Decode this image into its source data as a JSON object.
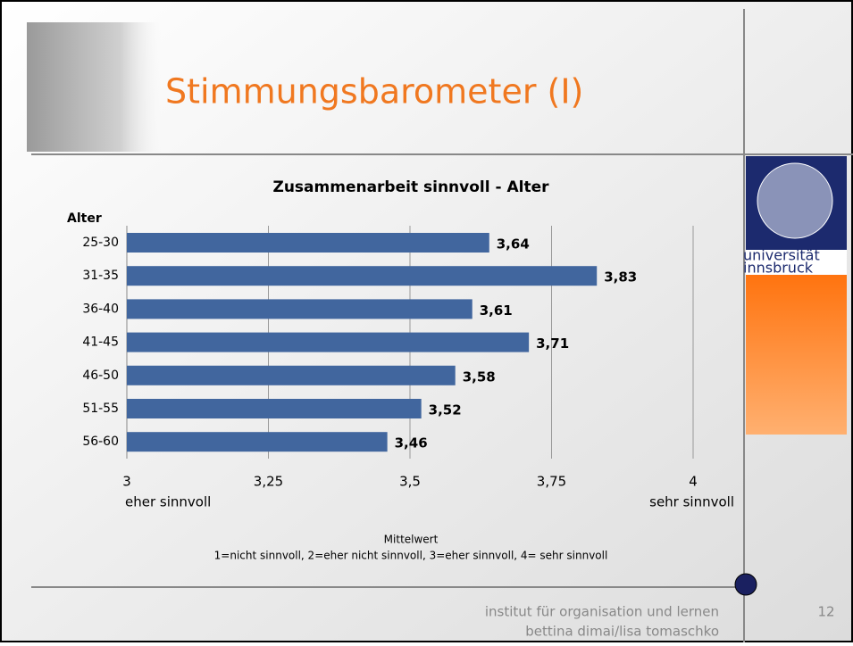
{
  "slide": {
    "title": "Stimmungsbarometer (I)",
    "footer": [
      "institut für organisation und lernen",
      "bettina dimai/lisa tomaschko"
    ],
    "page_number": "12",
    "logo": [
      "universität",
      "innsbruck"
    ]
  },
  "chart_data": {
    "type": "bar",
    "orientation": "horizontal",
    "title": "Zusammenarbeit sinnvoll - Alter",
    "y_label": "Alter",
    "categories": [
      "25-30",
      "31-35",
      "36-40",
      "41-45",
      "46-50",
      "51-55",
      "56-60"
    ],
    "values": [
      3.64,
      3.83,
      3.61,
      3.71,
      3.58,
      3.52,
      3.46
    ],
    "value_labels": [
      "3,64",
      "3,83",
      "3,61",
      "3,71",
      "3,58",
      "3,52",
      "3,46"
    ],
    "color": "#41669e",
    "xlim": [
      3,
      4
    ],
    "xticks": [
      3,
      {
        "value": 3.25,
        "label": "3,25"
      },
      {
        "value": 3.5,
        "label": "3,5"
      },
      {
        "value": 3.75,
        "label": "3,75"
      },
      4
    ],
    "grid": true,
    "annotations": [
      "eher sinnvoll",
      "sehr sinnvoll"
    ],
    "x_label": [
      "Mittelwert",
      "1=nicht sinnvoll, 2=eher nicht sinnvoll, 3=eher sinnvoll, 4= sehr sinnvoll"
    ]
  }
}
